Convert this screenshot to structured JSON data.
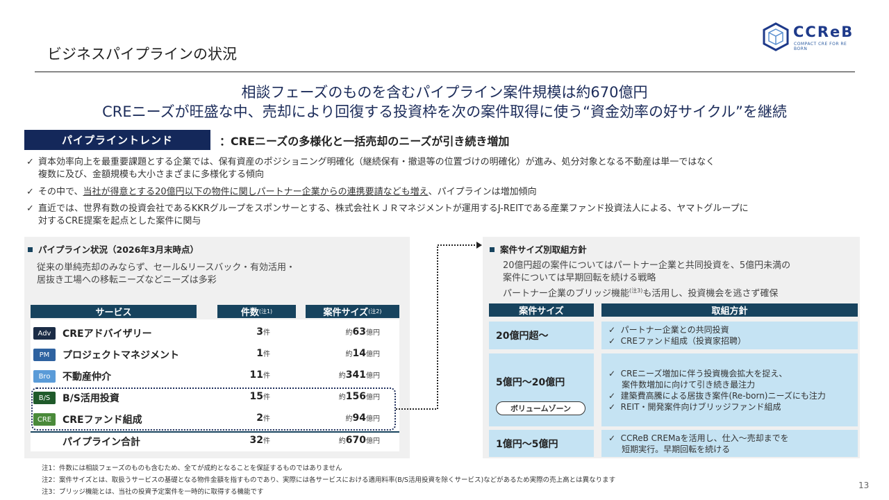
{
  "page_title": "ビジネスパイプラインの状況",
  "logo": {
    "name": "CCReB",
    "tagline": "COMPACT CRE FOR RE BORN",
    "color": "#1e3a8a"
  },
  "headline": [
    "相談フェーズのものを含むパイプライン案件規模は約670億円",
    "CREニーズが旺盛な中、売却により回復する投資枠を次の案件取得に使う“資金効率の好サイクル”を継続"
  ],
  "trend": {
    "label": "パイプライントレンド",
    "text": "：CREニーズの多様化と一括売却のニーズが引き続き増加"
  },
  "bullets": [
    {
      "lines": [
        "資本効率向上を最重要課題とする企業では、保有資産のポジショニング明確化（継続保有・撤退等の位置づけの明確化）が進み、処分対象となる不動産は単一ではなく",
        "複数に及び、金額規模も大小さまざまに多様化する傾向"
      ]
    },
    {
      "pre": "その中で、",
      "underlined": "当社が得意とする20億円以下の物件に関しパートナー企業からの連携要請なども増え",
      "post": "、パイプラインは増加傾向"
    },
    {
      "lines": [
        "直近では、世界有数の投資会社であるKKRグループをスポンサーとする、株式会社ＫＪＲマネジメントが運用するJ-REITである産業ファンド投資法人による、ヤマトグループに",
        "対するCRE提案を起点とした案件に関与"
      ]
    }
  ],
  "pipeline": {
    "heading": "パイプライン状況（2026年3月末時点）",
    "desc": [
      "従来の単純売却のみならず、セール&リースバック・有効活用・",
      "居抜き工場への移転ニーズなどニーズは多彩"
    ],
    "headers": {
      "service": "サービス",
      "count": "件数",
      "count_note": "(注1)",
      "size": "案件サイズ",
      "size_note": "(注2)"
    },
    "rows": [
      {
        "badge": "Adv",
        "badge_color": "#1b2c46",
        "service": "CREアドバイザリー",
        "count": "3",
        "amount": "63"
      },
      {
        "badge": "PM",
        "badge_color": "#2e62a0",
        "service": "プロジェクトマネジメント",
        "count": "1",
        "amount": "14"
      },
      {
        "badge": "Bro",
        "badge_color": "#5a9bd8",
        "service": "不動産仲介",
        "count": "11",
        "amount": "341"
      },
      {
        "badge": "B/S",
        "badge_color": "#1f5a2a",
        "service": "B/S活用投資",
        "count": "15",
        "amount": "156"
      },
      {
        "badge": "CRE",
        "badge_color": "#4a8a3a",
        "service": "CREファンド組成",
        "count": "2",
        "amount": "94"
      }
    ],
    "total": {
      "label": "パイプライン合計",
      "count": "32",
      "amount": "670"
    },
    "unit_count": "件",
    "prefix_amount": "約",
    "unit_amount": "億円"
  },
  "policy": {
    "heading": "案件サイズ別取組方針",
    "desc": [
      "20億円超の案件についてはパートナー企業と共同投資を、5億円未満の",
      "案件については早期回転を続ける戦略"
    ],
    "desc3_pre": "パートナー企業のブリッジ機能",
    "desc3_note": "(注3)",
    "desc3_post": "も活用し、投資機会を逃さず確保",
    "headers": {
      "size": "案件サイズ",
      "policy": "取組方針"
    },
    "rows": [
      {
        "size": "20億円超～",
        "items": [
          "✓  パートナー企業との共同投資",
          "✓  CREファンド組成（投資家招聘）"
        ]
      },
      {
        "size": "5億円～20億円",
        "tag": "ボリュームゾーン",
        "items": [
          "✓  CREニーズ増加に伴う投資機会拡大を捉え、",
          "     案件数増加に向けて引き続き最注力",
          "✓  建築費高騰による居抜き案件(Re-born)ニーズにも注力",
          "✓  REIT・開発案件向けブリッジファンド組成"
        ]
      },
      {
        "size": "1億円～5億円",
        "items": [
          "✓  CCReB CREMaを活用し、仕入～売却までを",
          "     短期実行。早期回転を続ける"
        ]
      }
    ]
  },
  "notes": [
    "注1：件数には相談フェーズのものも含むため、全てが成約となることを保証するものではありません",
    "注2：案件サイズとは、取扱うサービスの基礎となる物件金額を指すものであり、実際には各サービスにおける適用料率(B/S活用投資を除くサービス)などがあるため実際の売上高とは異なります",
    "注3：ブリッジ機能とは、当社の投資予定案件を一時的に取得する機能です"
  ],
  "page_number": "13"
}
